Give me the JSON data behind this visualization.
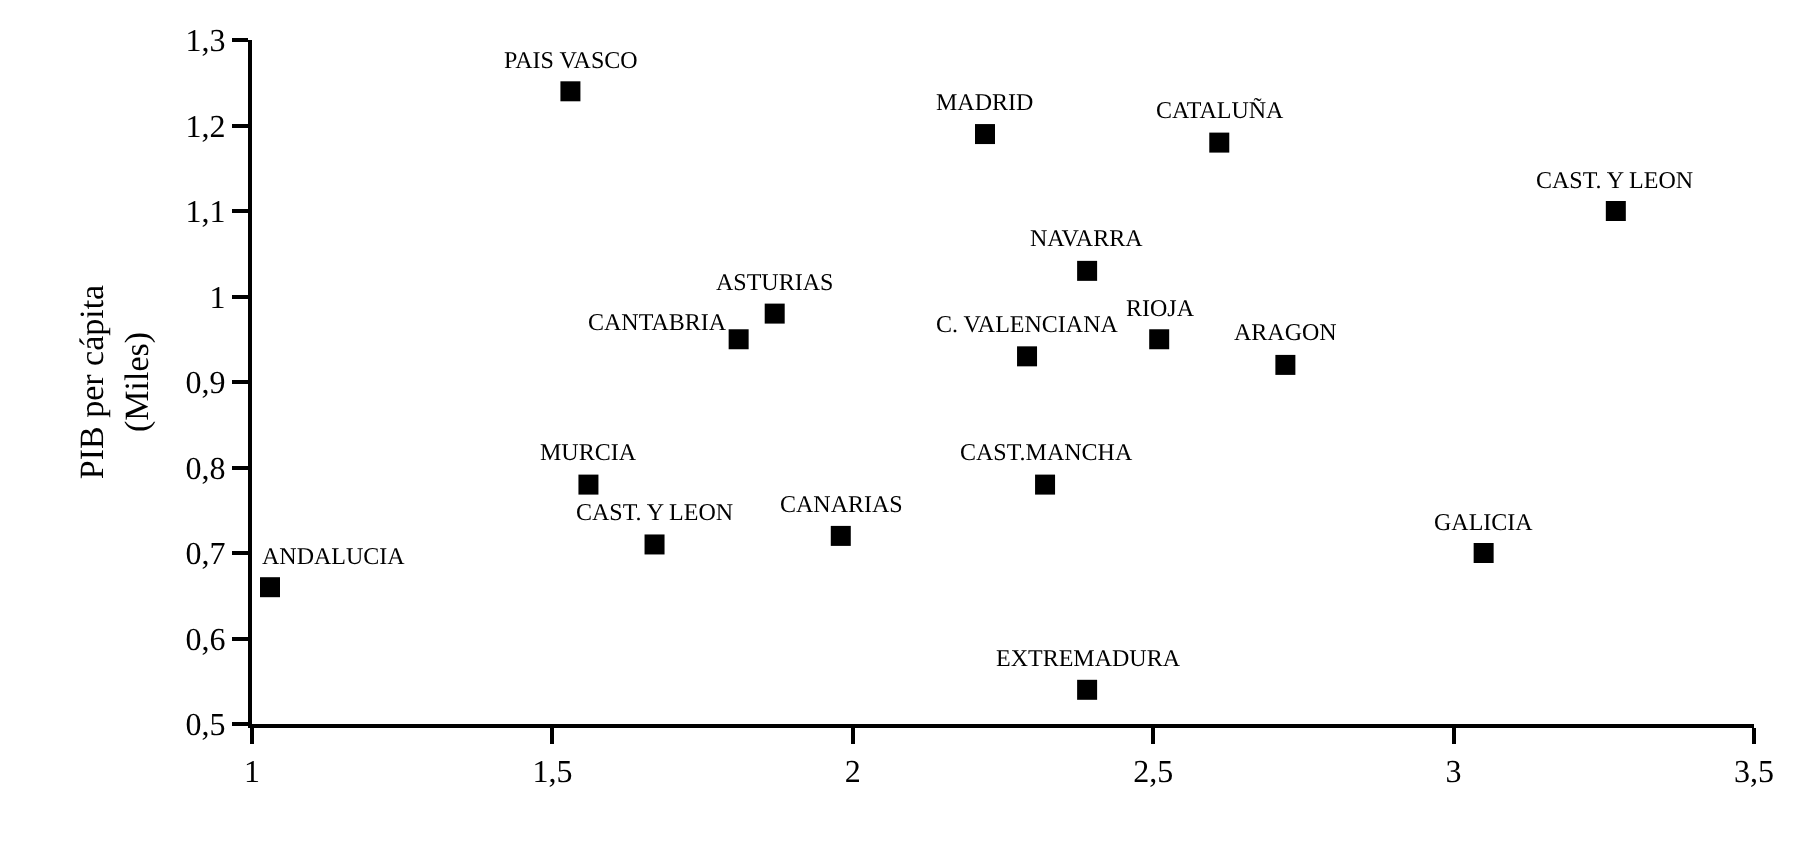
{
  "chart_data": {
    "type": "scatter",
    "ylabel": "PIB per cápita\n(Miles)",
    "x": [
      1.53,
      2.22,
      2.61,
      3.27,
      2.39,
      2.51,
      2.72,
      2.29,
      1.87,
      1.81,
      1.56,
      1.67,
      1.98,
      1.03,
      2.32,
      3.05,
      2.39
    ],
    "series": [
      {
        "color": "#000000",
        "values": [
          1.24,
          1.19,
          1.18,
          1.1,
          1.03,
          0.95,
          0.92,
          0.93,
          0.98,
          0.95,
          0.78,
          0.71,
          0.72,
          0.66,
          0.78,
          0.7,
          0.54
        ]
      }
    ],
    "annotations": [
      {
        "text": "PAIS VASCO",
        "x": 1.53,
        "y": 1.24
      },
      {
        "text": "MADRID",
        "x": 2.22,
        "y": 1.19
      },
      {
        "text": "CATALUÑA",
        "x": 2.61,
        "y": 1.18
      },
      {
        "text": "CAST. Y LEON",
        "x": 3.27,
        "y": 1.1
      },
      {
        "text": "NAVARRA",
        "x": 2.39,
        "y": 1.03
      },
      {
        "text": "RIOJA",
        "x": 2.51,
        "y": 0.95
      },
      {
        "text": "ARAGON",
        "x": 2.72,
        "y": 0.92
      },
      {
        "text": "C. VALENCIANA",
        "x": 2.29,
        "y": 0.93
      },
      {
        "text": "ASTURIAS",
        "x": 1.87,
        "y": 0.98
      },
      {
        "text": "CANTABRIA",
        "x": 1.81,
        "y": 0.95
      },
      {
        "text": "MURCIA",
        "x": 1.56,
        "y": 0.78
      },
      {
        "text": "CAST. Y LEON",
        "x": 1.67,
        "y": 0.71
      },
      {
        "text": "CANARIAS",
        "x": 1.98,
        "y": 0.72
      },
      {
        "text": "ANDALUCIA",
        "x": 1.03,
        "y": 0.66
      },
      {
        "text": "CAST.MANCHA",
        "x": 2.32,
        "y": 0.78
      },
      {
        "text": "GALICIA",
        "x": 3.05,
        "y": 0.7
      },
      {
        "text": "EXTREMADURA",
        "x": 2.39,
        "y": 0.54
      }
    ],
    "xlim": [
      1,
      3.5
    ],
    "ylim": [
      0.5,
      1.3
    ],
    "xticks": [
      1,
      {
        "value": 1.5,
        "label": "1,5"
      },
      2,
      {
        "value": 2.5,
        "label": "2,5"
      },
      3,
      {
        "value": 3.5,
        "label": "3,5"
      }
    ],
    "yticks": [
      {
        "value": 0.5,
        "label": "0,5"
      },
      {
        "value": 0.6,
        "label": "0,6"
      },
      {
        "value": 0.7,
        "label": "0,7"
      },
      {
        "value": 0.8,
        "label": "0,8"
      },
      {
        "value": 0.9,
        "label": "0,9"
      },
      1,
      {
        "value": 1.1,
        "label": "1,1"
      },
      {
        "value": 1.2,
        "label": "1,2"
      },
      {
        "value": 1.3,
        "label": "1,3"
      }
    ],
    "marker": "square"
  }
}
